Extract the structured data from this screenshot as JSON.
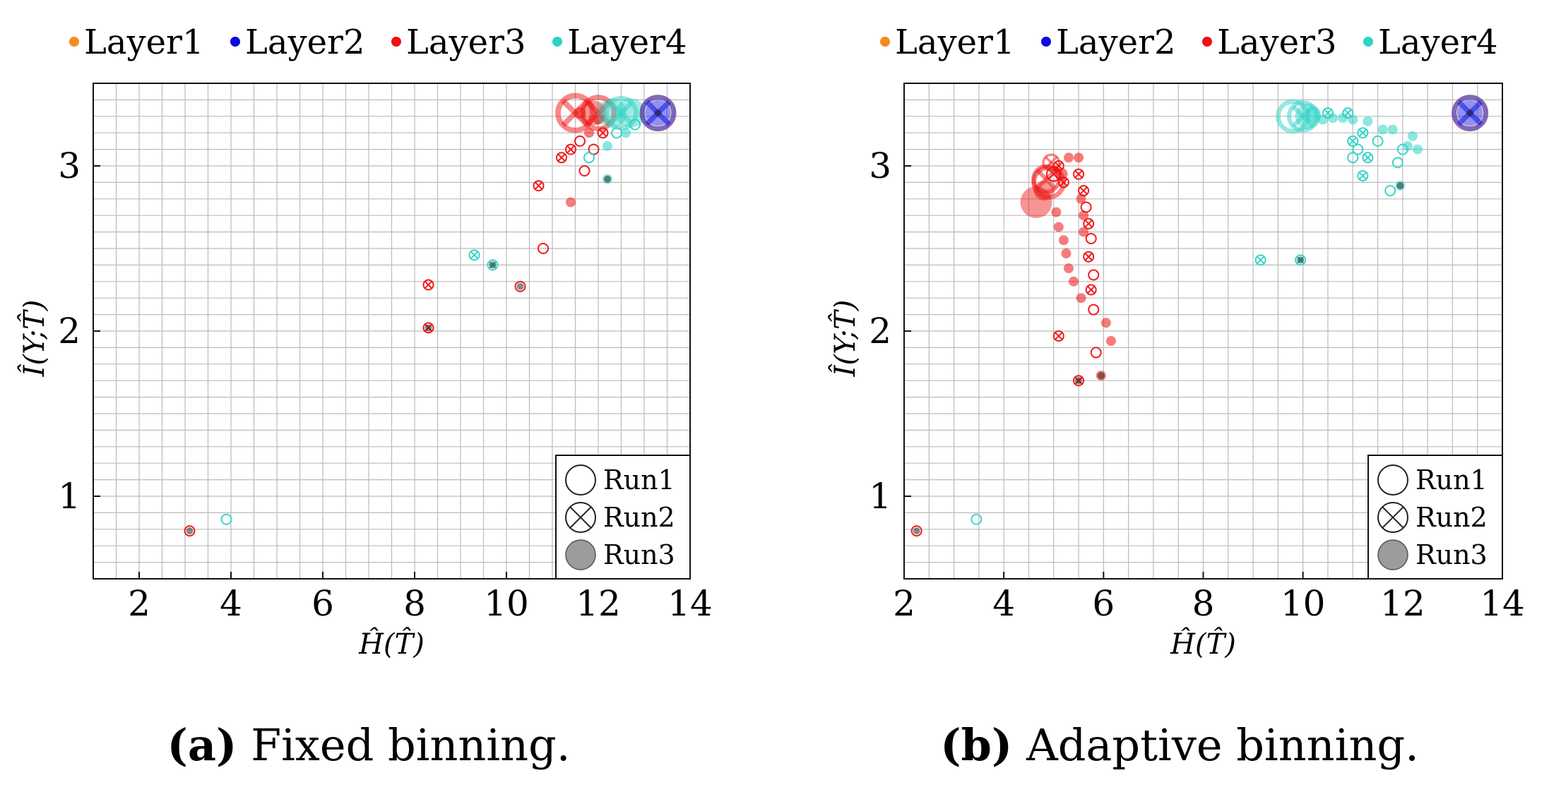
{
  "figure": {
    "panel_a_caption_letter": "(a)",
    "panel_a_caption_text": "Fixed binning.",
    "panel_b_caption_letter": "(b)",
    "panel_b_caption_text": "Adaptive binning."
  },
  "colors": {
    "Layer1": "#f58a1f",
    "Layer2": "#0a0ae0",
    "Layer3": "#ee1111",
    "Layer4": "#2ed3c6",
    "grid": "#bbbbbb",
    "marker_legend": "#222222"
  },
  "chart_data": [
    {
      "type": "scatter",
      "panel": "a",
      "xlabel": "Ĥ(T̂)",
      "ylabel": "Î(Y;T̂)",
      "xlim": [
        1,
        14
      ],
      "ylim": [
        0.5,
        3.5
      ],
      "x_ticks": [
        2,
        4,
        6,
        8,
        10,
        12,
        14
      ],
      "y_ticks": [
        1,
        2,
        3
      ],
      "grid": true,
      "series_legend": [
        "Layer1",
        "Layer2",
        "Layer3",
        "Layer4"
      ],
      "marker_legend": [
        "Run1",
        "Run2",
        "Run3"
      ],
      "marker_legend_position": "bottom-right",
      "series": [
        {
          "name": "Layer3",
          "points": [
            {
              "x": 3.1,
              "y": 0.79,
              "m": "o",
              "s": 1
            },
            {
              "x": 8.3,
              "y": 2.28,
              "m": "x",
              "s": 1
            },
            {
              "x": 8.3,
              "y": 2.02,
              "m": "x",
              "s": 1
            },
            {
              "x": 10.3,
              "y": 2.27,
              "m": "o",
              "s": 1
            },
            {
              "x": 10.8,
              "y": 2.5,
              "m": "o",
              "s": 1
            },
            {
              "x": 10.7,
              "y": 2.88,
              "m": "x",
              "s": 1
            },
            {
              "x": 11.4,
              "y": 2.78,
              "m": "f",
              "s": 1
            },
            {
              "x": 11.7,
              "y": 2.97,
              "m": "o",
              "s": 1
            },
            {
              "x": 11.2,
              "y": 3.05,
              "m": "x",
              "s": 1
            },
            {
              "x": 11.4,
              "y": 3.1,
              "m": "x",
              "s": 1
            },
            {
              "x": 11.6,
              "y": 3.15,
              "m": "o",
              "s": 1
            },
            {
              "x": 11.9,
              "y": 3.1,
              "m": "o",
              "s": 1
            },
            {
              "x": 11.8,
              "y": 3.2,
              "m": "f",
              "s": 1
            },
            {
              "x": 12.1,
              "y": 3.2,
              "m": "x",
              "s": 1
            },
            {
              "x": 12.0,
              "y": 3.28,
              "m": "f",
              "s": 1
            },
            {
              "x": 11.6,
              "y": 3.32,
              "m": "f",
              "s": 1.2
            },
            {
              "x": 11.5,
              "y": 3.32,
              "m": "x",
              "s": 3.5
            },
            {
              "x": 12.0,
              "y": 3.32,
              "m": "x",
              "s": 3.2
            },
            {
              "x": 11.9,
              "y": 3.32,
              "m": "f",
              "s": 2.5
            }
          ]
        },
        {
          "name": "Layer4",
          "points": [
            {
              "x": 3.9,
              "y": 0.86,
              "m": "o",
              "s": 1
            },
            {
              "x": 9.3,
              "y": 2.46,
              "m": "x",
              "s": 1
            },
            {
              "x": 9.7,
              "y": 2.4,
              "m": "x",
              "s": 1
            },
            {
              "x": 12.2,
              "y": 2.92,
              "m": "f",
              "s": 1
            },
            {
              "x": 11.8,
              "y": 3.05,
              "m": "o",
              "s": 1
            },
            {
              "x": 12.2,
              "y": 3.12,
              "m": "f",
              "s": 1
            },
            {
              "x": 12.4,
              "y": 3.2,
              "m": "o",
              "s": 1
            },
            {
              "x": 12.6,
              "y": 3.2,
              "m": "f",
              "s": 1
            },
            {
              "x": 12.8,
              "y": 3.25,
              "m": "o",
              "s": 1
            },
            {
              "x": 12.3,
              "y": 3.32,
              "m": "f",
              "s": 3.0
            },
            {
              "x": 12.5,
              "y": 3.32,
              "m": "x",
              "s": 3.0
            },
            {
              "x": 12.7,
              "y": 3.32,
              "m": "f",
              "s": 3.0
            }
          ]
        },
        {
          "name": "Layer1",
          "points": [
            {
              "x": 13.3,
              "y": 3.32,
              "m": "o",
              "s": 3.2
            }
          ]
        },
        {
          "name": "Layer2",
          "points": [
            {
              "x": 13.3,
              "y": 3.32,
              "m": "x",
              "s": 3.2
            },
            {
              "x": 13.3,
              "y": 3.32,
              "m": "f",
              "s": 2.6
            }
          ]
        },
        {
          "name": "Overlap",
          "points": [
            {
              "x": 3.1,
              "y": 0.79,
              "m": "dot",
              "s": 1
            },
            {
              "x": 8.3,
              "y": 2.02,
              "m": "dot",
              "s": 1
            },
            {
              "x": 10.3,
              "y": 2.27,
              "m": "dot",
              "s": 1
            },
            {
              "x": 9.7,
              "y": 2.4,
              "m": "dot",
              "s": 1
            },
            {
              "x": 12.2,
              "y": 2.92,
              "m": "dot",
              "s": 1
            },
            {
              "x": 13.3,
              "y": 3.32,
              "m": "dot",
              "s": 1
            }
          ]
        }
      ]
    },
    {
      "type": "scatter",
      "panel": "b",
      "xlabel": "Ĥ(T̂)",
      "ylabel": "Î(Y;T̂)",
      "xlim": [
        2,
        14
      ],
      "ylim": [
        0.5,
        3.5
      ],
      "x_ticks": [
        2,
        4,
        6,
        8,
        10,
        12,
        14
      ],
      "y_ticks": [
        1,
        2,
        3
      ],
      "grid": true,
      "series_legend": [
        "Layer1",
        "Layer2",
        "Layer3",
        "Layer4"
      ],
      "marker_legend": [
        "Run1",
        "Run2",
        "Run3"
      ],
      "marker_legend_position": "bottom-right",
      "series": [
        {
          "name": "Layer3",
          "points": [
            {
              "x": 2.25,
              "y": 0.79,
              "m": "o",
              "s": 1
            },
            {
              "x": 5.5,
              "y": 1.7,
              "m": "x",
              "s": 1
            },
            {
              "x": 5.95,
              "y": 1.73,
              "m": "f",
              "s": 1
            },
            {
              "x": 5.1,
              "y": 1.97,
              "m": "x",
              "s": 1
            },
            {
              "x": 5.85,
              "y": 1.87,
              "m": "o",
              "s": 1
            },
            {
              "x": 6.15,
              "y": 1.94,
              "m": "f",
              "s": 1
            },
            {
              "x": 6.05,
              "y": 2.05,
              "m": "f",
              "s": 1
            },
            {
              "x": 5.8,
              "y": 2.13,
              "m": "o",
              "s": 1
            },
            {
              "x": 5.75,
              "y": 2.25,
              "m": "x",
              "s": 1
            },
            {
              "x": 5.8,
              "y": 2.34,
              "m": "o",
              "s": 1
            },
            {
              "x": 5.7,
              "y": 2.45,
              "m": "x",
              "s": 1
            },
            {
              "x": 5.75,
              "y": 2.56,
              "m": "o",
              "s": 1
            },
            {
              "x": 5.7,
              "y": 2.65,
              "m": "x",
              "s": 1
            },
            {
              "x": 5.65,
              "y": 2.75,
              "m": "o",
              "s": 1
            },
            {
              "x": 5.6,
              "y": 2.85,
              "m": "x",
              "s": 1
            },
            {
              "x": 5.5,
              "y": 2.95,
              "m": "x",
              "s": 1
            },
            {
              "x": 5.55,
              "y": 2.2,
              "m": "f",
              "s": 1
            },
            {
              "x": 5.4,
              "y": 2.3,
              "m": "f",
              "s": 1
            },
            {
              "x": 5.3,
              "y": 2.38,
              "m": "f",
              "s": 1
            },
            {
              "x": 5.25,
              "y": 2.47,
              "m": "f",
              "s": 1
            },
            {
              "x": 5.2,
              "y": 2.55,
              "m": "f",
              "s": 1
            },
            {
              "x": 5.1,
              "y": 2.63,
              "m": "f",
              "s": 1
            },
            {
              "x": 5.05,
              "y": 2.72,
              "m": "f",
              "s": 1
            },
            {
              "x": 5.6,
              "y": 2.6,
              "m": "f",
              "s": 1
            },
            {
              "x": 5.6,
              "y": 2.7,
              "m": "f",
              "s": 1
            },
            {
              "x": 5.55,
              "y": 2.8,
              "m": "f",
              "s": 1
            },
            {
              "x": 5.5,
              "y": 3.05,
              "m": "f",
              "s": 1
            },
            {
              "x": 5.3,
              "y": 3.05,
              "m": "f",
              "s": 1
            },
            {
              "x": 5.1,
              "y": 3.0,
              "m": "x",
              "s": 1
            },
            {
              "x": 5.2,
              "y": 2.9,
              "m": "x",
              "s": 1
            },
            {
              "x": 5.0,
              "y": 2.95,
              "m": "x",
              "s": 1.4
            },
            {
              "x": 4.95,
              "y": 3.02,
              "m": "x",
              "s": 1.6
            },
            {
              "x": 5.15,
              "y": 2.95,
              "m": "f",
              "s": 1.3
            },
            {
              "x": 4.9,
              "y": 2.9,
              "m": "o",
              "s": 3.0
            },
            {
              "x": 4.85,
              "y": 2.92,
              "m": "x",
              "s": 2.6
            },
            {
              "x": 4.65,
              "y": 2.78,
              "m": "f",
              "s": 3.2
            },
            {
              "x": 4.8,
              "y": 2.85,
              "m": "f",
              "s": 2.0
            }
          ]
        },
        {
          "name": "Layer4",
          "points": [
            {
              "x": 3.45,
              "y": 0.86,
              "m": "o",
              "s": 1
            },
            {
              "x": 9.15,
              "y": 2.43,
              "m": "x",
              "s": 1
            },
            {
              "x": 9.95,
              "y": 2.43,
              "m": "x",
              "s": 1
            },
            {
              "x": 11.95,
              "y": 2.88,
              "m": "f",
              "s": 1
            },
            {
              "x": 11.75,
              "y": 2.85,
              "m": "o",
              "s": 1
            },
            {
              "x": 11.2,
              "y": 2.94,
              "m": "x",
              "s": 1
            },
            {
              "x": 11.0,
              "y": 3.05,
              "m": "o",
              "s": 1
            },
            {
              "x": 11.1,
              "y": 3.1,
              "m": "o",
              "s": 1
            },
            {
              "x": 11.3,
              "y": 3.05,
              "m": "x",
              "s": 1
            },
            {
              "x": 11.5,
              "y": 3.15,
              "m": "o",
              "s": 1
            },
            {
              "x": 11.9,
              "y": 3.02,
              "m": "o",
              "s": 1
            },
            {
              "x": 12.0,
              "y": 3.1,
              "m": "o",
              "s": 1
            },
            {
              "x": 11.0,
              "y": 3.15,
              "m": "x",
              "s": 1
            },
            {
              "x": 11.2,
              "y": 3.2,
              "m": "x",
              "s": 1
            },
            {
              "x": 12.1,
              "y": 3.12,
              "m": "f",
              "s": 1
            },
            {
              "x": 12.3,
              "y": 3.1,
              "m": "f",
              "s": 1
            },
            {
              "x": 12.2,
              "y": 3.18,
              "m": "f",
              "s": 1
            },
            {
              "x": 11.6,
              "y": 3.22,
              "m": "f",
              "s": 1
            },
            {
              "x": 11.8,
              "y": 3.22,
              "m": "f",
              "s": 1
            },
            {
              "x": 10.4,
              "y": 3.28,
              "m": "f",
              "s": 1
            },
            {
              "x": 10.6,
              "y": 3.29,
              "m": "f",
              "s": 1
            },
            {
              "x": 10.8,
              "y": 3.29,
              "m": "f",
              "s": 1
            },
            {
              "x": 11.0,
              "y": 3.28,
              "m": "f",
              "s": 1
            },
            {
              "x": 11.3,
              "y": 3.27,
              "m": "f",
              "s": 1
            },
            {
              "x": 10.5,
              "y": 3.32,
              "m": "x",
              "s": 1
            },
            {
              "x": 10.9,
              "y": 3.32,
              "m": "x",
              "s": 1
            },
            {
              "x": 9.8,
              "y": 3.3,
              "m": "o",
              "s": 3.0
            },
            {
              "x": 10.0,
              "y": 3.3,
              "m": "x",
              "s": 2.8
            },
            {
              "x": 10.1,
              "y": 3.3,
              "m": "f",
              "s": 2.6
            },
            {
              "x": 10.2,
              "y": 3.31,
              "m": "f",
              "s": 1.6
            }
          ]
        },
        {
          "name": "Layer1",
          "points": [
            {
              "x": 13.35,
              "y": 3.32,
              "m": "o",
              "s": 3.2
            }
          ]
        },
        {
          "name": "Layer2",
          "points": [
            {
              "x": 13.35,
              "y": 3.32,
              "m": "x",
              "s": 3.2
            },
            {
              "x": 13.35,
              "y": 3.32,
              "m": "f",
              "s": 2.6
            }
          ]
        },
        {
          "name": "Overlap",
          "points": [
            {
              "x": 2.25,
              "y": 0.79,
              "m": "dot",
              "s": 1
            },
            {
              "x": 5.5,
              "y": 1.7,
              "m": "dot",
              "s": 1
            },
            {
              "x": 5.95,
              "y": 1.73,
              "m": "dot",
              "s": 1
            },
            {
              "x": 9.95,
              "y": 2.43,
              "m": "dot",
              "s": 1
            },
            {
              "x": 11.95,
              "y": 2.88,
              "m": "dot",
              "s": 1
            },
            {
              "x": 13.35,
              "y": 3.32,
              "m": "dot",
              "s": 1
            }
          ]
        }
      ]
    }
  ]
}
